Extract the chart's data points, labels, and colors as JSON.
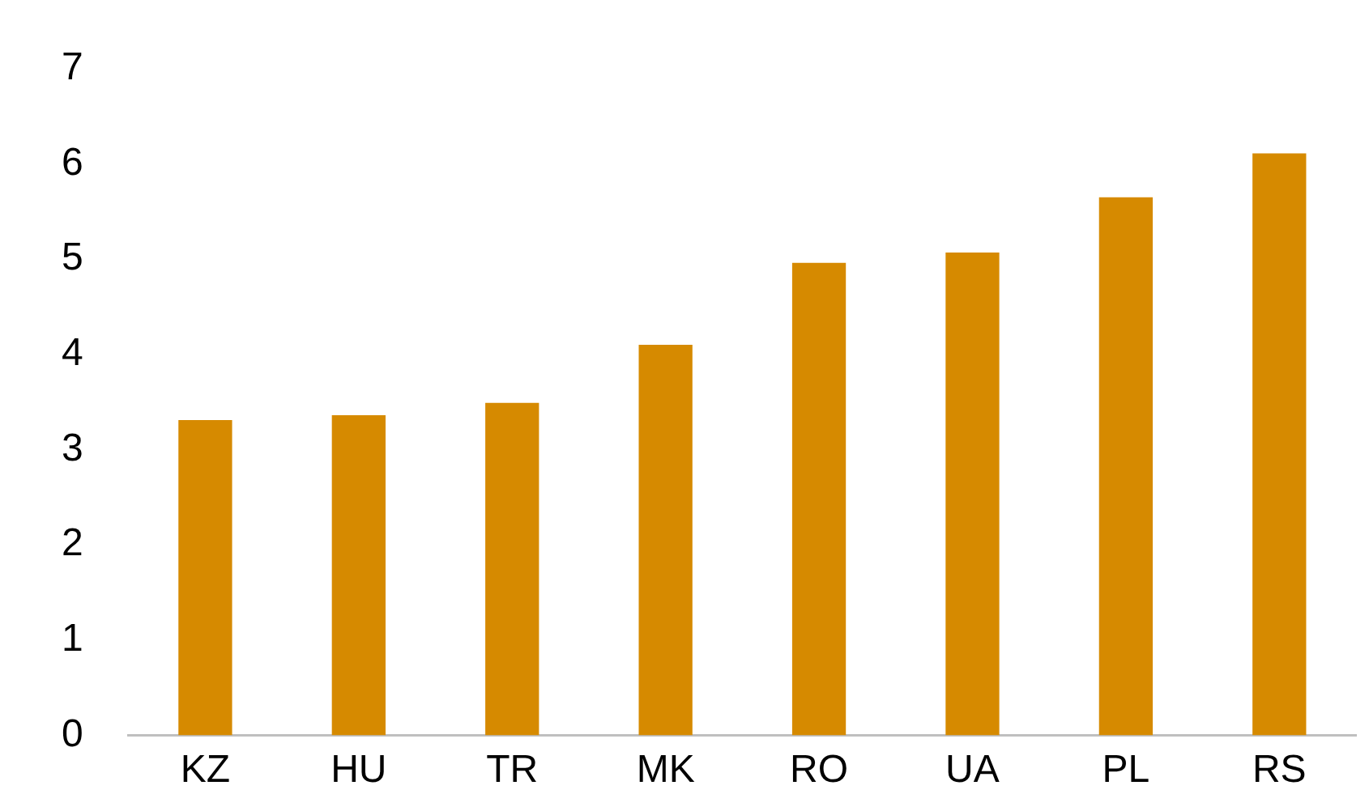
{
  "chart_data": {
    "type": "bar",
    "categories": [
      "KZ",
      "HU",
      "TR",
      "MK",
      "RO",
      "UA",
      "PL",
      "RS"
    ],
    "values": [
      3.31,
      3.36,
      3.49,
      4.1,
      4.96,
      5.07,
      5.65,
      6.11
    ],
    "color": "#d68a00",
    "ylim": [
      0,
      7
    ],
    "yticks": [
      0,
      1,
      2,
      3,
      4,
      5,
      6,
      7
    ],
    "grid": false,
    "legend": false
  }
}
